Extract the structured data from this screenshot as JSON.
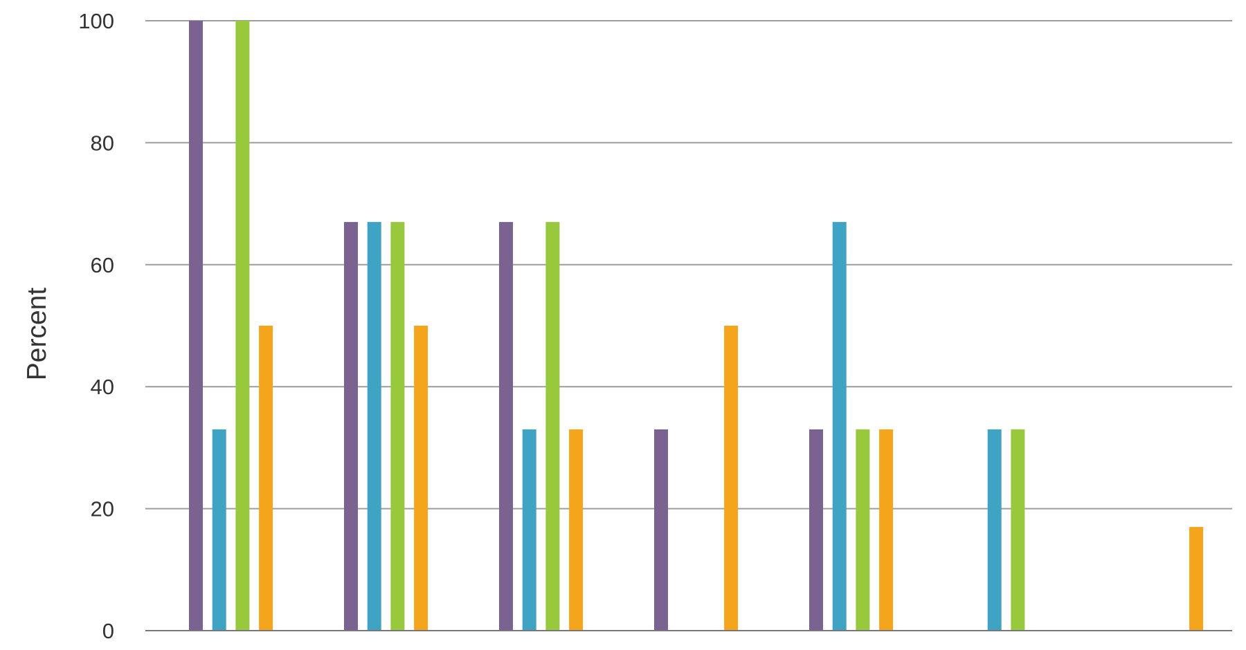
{
  "chart_data": {
    "type": "bar",
    "title": "",
    "xlabel": "",
    "ylabel": "Percent",
    "ylim": [
      0,
      100
    ],
    "yticks": [
      0,
      20,
      40,
      60,
      80,
      100
    ],
    "grid": true,
    "legend": "none",
    "categories": [
      "",
      "",
      "",
      "",
      "",
      "",
      ""
    ],
    "series": [
      {
        "color": "#7b6391",
        "values": [
          100,
          67,
          67,
          33,
          33,
          0,
          0
        ]
      },
      {
        "color": "#3fa4c4",
        "values": [
          33,
          67,
          33,
          0,
          67,
          33,
          0
        ]
      },
      {
        "color": "#98c93c",
        "values": [
          100,
          67,
          67,
          0,
          33,
          33,
          0
        ]
      },
      {
        "color": "#f5a51c",
        "values": [
          50,
          50,
          33,
          50,
          33,
          0,
          17
        ]
      }
    ]
  }
}
